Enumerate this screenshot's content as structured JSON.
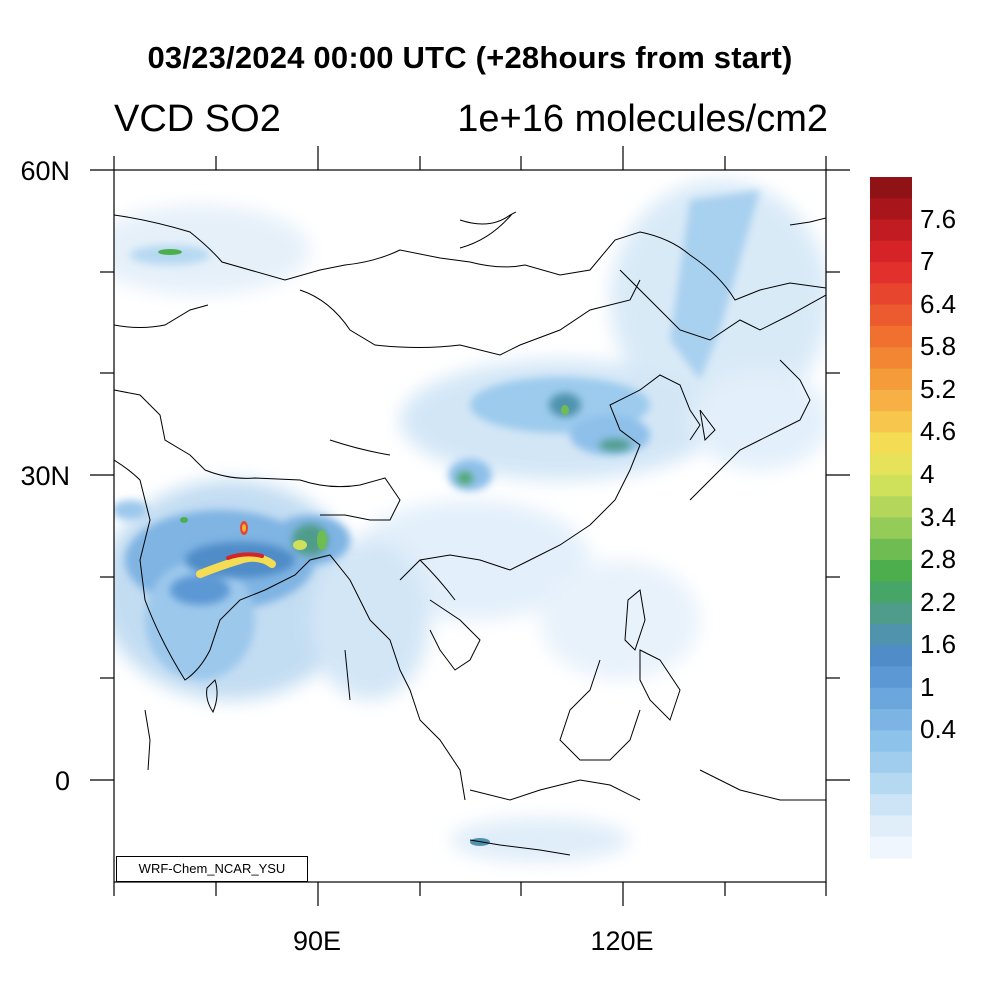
{
  "title": "03/23/2024 00:00 UTC (+28hours from start)",
  "left_subtitle": "VCD SO2",
  "right_subtitle": "1e+16 molecules/cm2",
  "credit": "WRF-Chem_NCAR_YSU",
  "axes": {
    "lat_labels": [
      "60N",
      "30N",
      "0"
    ],
    "lon_labels": [
      "90E",
      "120E"
    ]
  },
  "colorbar": {
    "labels": [
      "7.6",
      "7",
      "6.4",
      "5.8",
      "5.2",
      "4.6",
      "4",
      "3.4",
      "2.8",
      "2.2",
      "1.6",
      "1",
      "0.4"
    ],
    "colors_top_to_bottom": [
      "#8f1217",
      "#a8161b",
      "#c11c22",
      "#d62328",
      "#e2302c",
      "#e8452e",
      "#ec5b2f",
      "#f07030",
      "#f28633",
      "#f49b3a",
      "#f6b043",
      "#f7c64c",
      "#f5dc55",
      "#e6e25a",
      "#cfe05b",
      "#b4d65a",
      "#95cb58",
      "#6fbd52",
      "#4cae4c",
      "#48a568",
      "#4f9c8a",
      "#4f93ad",
      "#4f8cc8",
      "#5b98d4",
      "#6ba6dc",
      "#7cb4e3",
      "#8dc2ea",
      "#a0cdee",
      "#b6d9f2",
      "#cce4f6",
      "#e0eefa",
      "#eff6fd"
    ]
  }
}
